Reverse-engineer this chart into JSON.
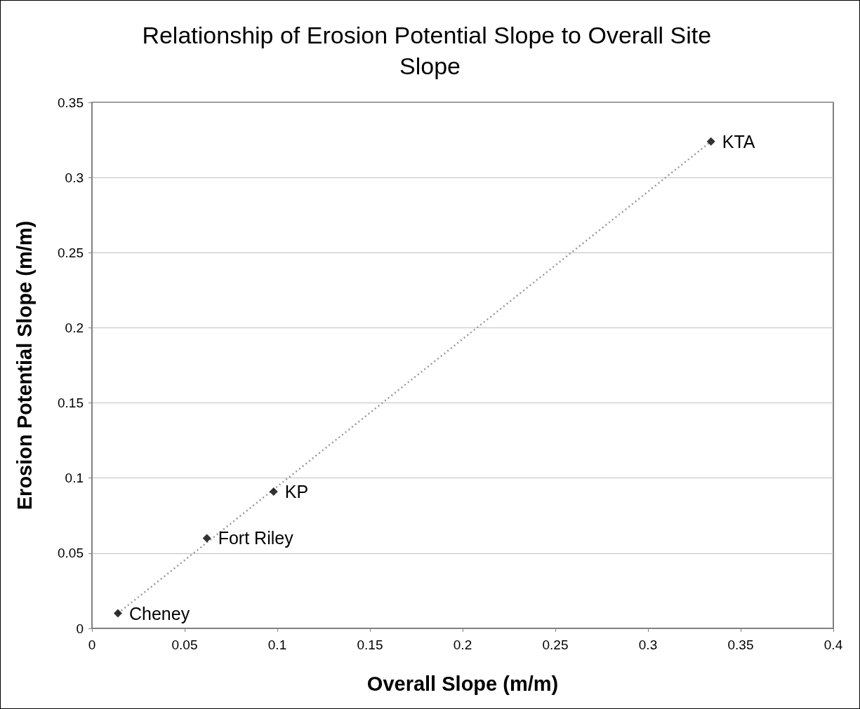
{
  "chart_data": {
    "type": "scatter",
    "title": "Relationship of Erosion Potential Slope to Overall Site Slope",
    "xlabel": "Overall Slope (m/m)",
    "ylabel": "Erosion Potential Slope (m/m)",
    "x": [
      0.014,
      0.062,
      0.098,
      0.334
    ],
    "series": [
      {
        "color": "#000000",
        "values": [
          0.01,
          0.06,
          0.091,
          0.324
        ]
      },
      {
        "type": "line",
        "color": "#999999",
        "line_style": "dotted",
        "marker": "none",
        "x": [
          0.014,
          0.334
        ],
        "values": [
          0.01,
          0.324
        ]
      }
    ],
    "marker": "diamond",
    "annotations": [
      {
        "text": "Cheney",
        "x": 0.014,
        "y": 0.01
      },
      {
        "text": "Fort Riley",
        "x": 0.062,
        "y": 0.06
      },
      {
        "text": "KP",
        "x": 0.098,
        "y": 0.091
      },
      {
        "text": "KTA",
        "x": 0.334,
        "y": 0.324
      }
    ],
    "xlim": [
      0,
      0.4
    ],
    "xticks": [
      0,
      0.05,
      0.1,
      0.15,
      0.2,
      0.25,
      0.3,
      0.35,
      0.4
    ],
    "ylim": [
      0,
      0.35
    ],
    "yticks": [
      0,
      0.05,
      0.1,
      0.15,
      0.2,
      0.25,
      0.3,
      0.35
    ],
    "grid": "y"
  }
}
